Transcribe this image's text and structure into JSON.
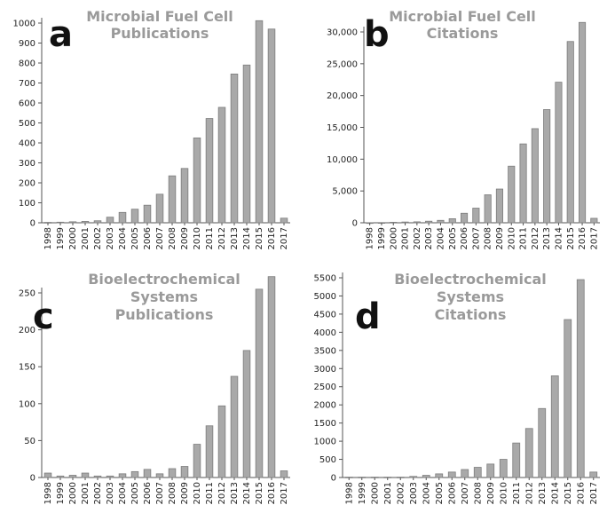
{
  "chart_data": [
    {
      "type": "bar",
      "panel_label": "a",
      "title_lines": [
        "Microbial Fuel Cell",
        "Publications"
      ],
      "categories": [
        "1998",
        "1999",
        "2000",
        "2001",
        "2002",
        "2003",
        "2004",
        "2005",
        "2006",
        "2007",
        "2008",
        "2009",
        "2010",
        "2011",
        "2012",
        "2013",
        "2014",
        "2015",
        "2016",
        "2017"
      ],
      "values": [
        2,
        3,
        5,
        7,
        10,
        28,
        52,
        68,
        88,
        143,
        235,
        272,
        425,
        522,
        578,
        745,
        790,
        1012,
        970,
        23
      ],
      "ylim": [
        0,
        1000
      ],
      "yticks": [
        0,
        100,
        200,
        300,
        400,
        500,
        600,
        700,
        800,
        900,
        1000
      ],
      "ytick_labels": [
        "0",
        "100",
        "200",
        "300",
        "400",
        "500",
        "600",
        "700",
        "800",
        "900",
        "1000"
      ]
    },
    {
      "type": "bar",
      "panel_label": "b",
      "title_lines": [
        "Microbial Fuel Cell",
        "Citations"
      ],
      "categories": [
        "1998",
        "1999",
        "2000",
        "2001",
        "2002",
        "2003",
        "2004",
        "2005",
        "2006",
        "2007",
        "2008",
        "2009",
        "2010",
        "2011",
        "2012",
        "2013",
        "2014",
        "2015",
        "2016",
        "2017"
      ],
      "values": [
        10,
        30,
        80,
        120,
        150,
        250,
        380,
        640,
        1500,
        2300,
        4400,
        5300,
        8900,
        12400,
        14800,
        17800,
        22100,
        28500,
        31500,
        700
      ],
      "ylim": [
        0,
        30000
      ],
      "yticks": [
        0,
        5000,
        10000,
        15000,
        20000,
        25000,
        30000
      ],
      "ytick_labels": [
        "0",
        "5,000",
        "10,000",
        "15,000",
        "20,000",
        "25,000",
        "30,000"
      ]
    },
    {
      "type": "bar",
      "panel_label": "c",
      "title_lines": [
        "Bioelectrochemical",
        "Systems",
        "Publications"
      ],
      "categories": [
        "1998",
        "1999",
        "2000",
        "2001",
        "2002",
        "2003",
        "2004",
        "2005",
        "2006",
        "2007",
        "2008",
        "2009",
        "2010",
        "2011",
        "2012",
        "2013",
        "2014",
        "2015",
        "2016",
        "2017"
      ],
      "values": [
        6,
        2,
        3,
        6,
        2,
        2,
        5,
        8,
        11,
        5,
        12,
        15,
        45,
        70,
        97,
        137,
        172,
        255,
        272,
        9
      ],
      "ylim": [
        0,
        250
      ],
      "yticks": [
        0,
        50,
        100,
        150,
        200,
        250
      ],
      "ytick_labels": [
        "0",
        "50",
        "100",
        "150",
        "200",
        "250"
      ]
    },
    {
      "type": "bar",
      "panel_label": "d",
      "title_lines": [
        "Bioelectrochemical",
        "Systems",
        "Citations"
      ],
      "categories": [
        "1998",
        "1999",
        "2000",
        "2001",
        "2002",
        "2003",
        "2004",
        "2005",
        "2006",
        "2007",
        "2008",
        "2009",
        "2010",
        "2011",
        "2012",
        "2013",
        "2014",
        "2015",
        "2016",
        "2017"
      ],
      "values": [
        10,
        10,
        10,
        10,
        10,
        30,
        60,
        100,
        150,
        220,
        280,
        370,
        500,
        950,
        1350,
        1900,
        2800,
        4350,
        5450,
        150
      ],
      "ylim": [
        0,
        5500
      ],
      "yticks": [
        0,
        500,
        1000,
        1500,
        2000,
        2500,
        3000,
        3500,
        4000,
        4500,
        5000,
        5500
      ],
      "ytick_labels": [
        "0",
        "500",
        "1000",
        "1500",
        "2000",
        "2500",
        "3000",
        "3500",
        "4000",
        "4500",
        "5000",
        "5500"
      ]
    }
  ]
}
